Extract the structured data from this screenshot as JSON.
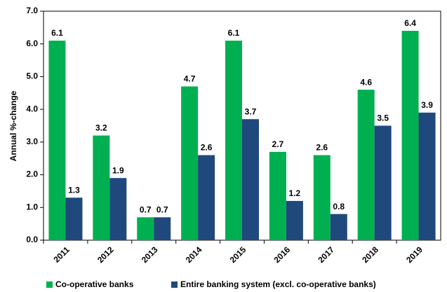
{
  "chart_data": {
    "type": "bar",
    "ylabel": "Annual %-change",
    "categories": [
      "2011",
      "2012",
      "2013",
      "2014",
      "2015",
      "2016",
      "2017",
      "2018",
      "2019"
    ],
    "series": [
      {
        "name": "Co-operative banks",
        "color": "#00b050",
        "values": [
          6.1,
          3.2,
          0.7,
          4.7,
          6.1,
          2.7,
          2.6,
          4.6,
          6.4
        ]
      },
      {
        "name": "Entire banking system (excl. co-operative banks)",
        "color": "#1f497d",
        "values": [
          1.3,
          1.9,
          0.7,
          2.6,
          3.7,
          1.2,
          0.8,
          3.5,
          3.9
        ]
      }
    ],
    "ylim": [
      0,
      7
    ],
    "yticks": [
      {
        "value": 0,
        "label": "0.0"
      },
      {
        "value": 1,
        "label": "1.0"
      },
      {
        "value": 2,
        "label": "2.0"
      },
      {
        "value": 3,
        "label": "3.0"
      },
      {
        "value": 4,
        "label": "4.0"
      },
      {
        "value": 5,
        "label": "5.0"
      },
      {
        "value": 6,
        "label": "6.0"
      },
      {
        "value": 7,
        "label": "7.0"
      }
    ],
    "grid": false,
    "legend": "bottom"
  }
}
